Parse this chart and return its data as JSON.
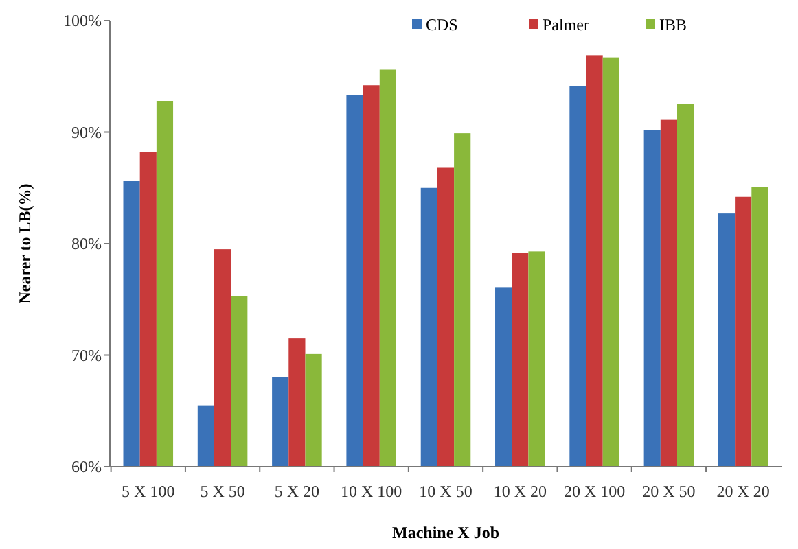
{
  "chart_data": {
    "type": "bar",
    "xlabel": "Machine X Job",
    "ylabel": "Nearer to LB(%)",
    "categories": [
      "5 X 100",
      "5 X 50",
      "5 X 20",
      "10 X 100",
      "10 X 50",
      "10 X 20",
      "20 X 100",
      "20 X 50",
      "20 X 20"
    ],
    "series": [
      {
        "name": "CDS",
        "color": "#3a72b8",
        "values": [
          85.6,
          65.5,
          68.0,
          93.3,
          85.0,
          76.1,
          94.1,
          90.2,
          82.7
        ]
      },
      {
        "name": "Palmer",
        "color": "#c83a3a",
        "values": [
          88.2,
          79.5,
          71.5,
          94.2,
          86.8,
          79.2,
          96.9,
          91.1,
          84.2
        ]
      },
      {
        "name": "IBB",
        "color": "#8ab83a",
        "values": [
          92.8,
          75.3,
          70.1,
          95.6,
          89.9,
          79.3,
          96.7,
          92.5,
          85.1
        ]
      }
    ],
    "ylim": [
      60,
      100
    ],
    "yticks": [
      {
        "value": 60,
        "label": "60%"
      },
      {
        "value": 70,
        "label": "70%"
      },
      {
        "value": 80,
        "label": "80%"
      },
      {
        "value": 90,
        "label": "90%"
      },
      {
        "value": 100,
        "label": "100%"
      }
    ],
    "grid": false,
    "legend": "top right"
  }
}
